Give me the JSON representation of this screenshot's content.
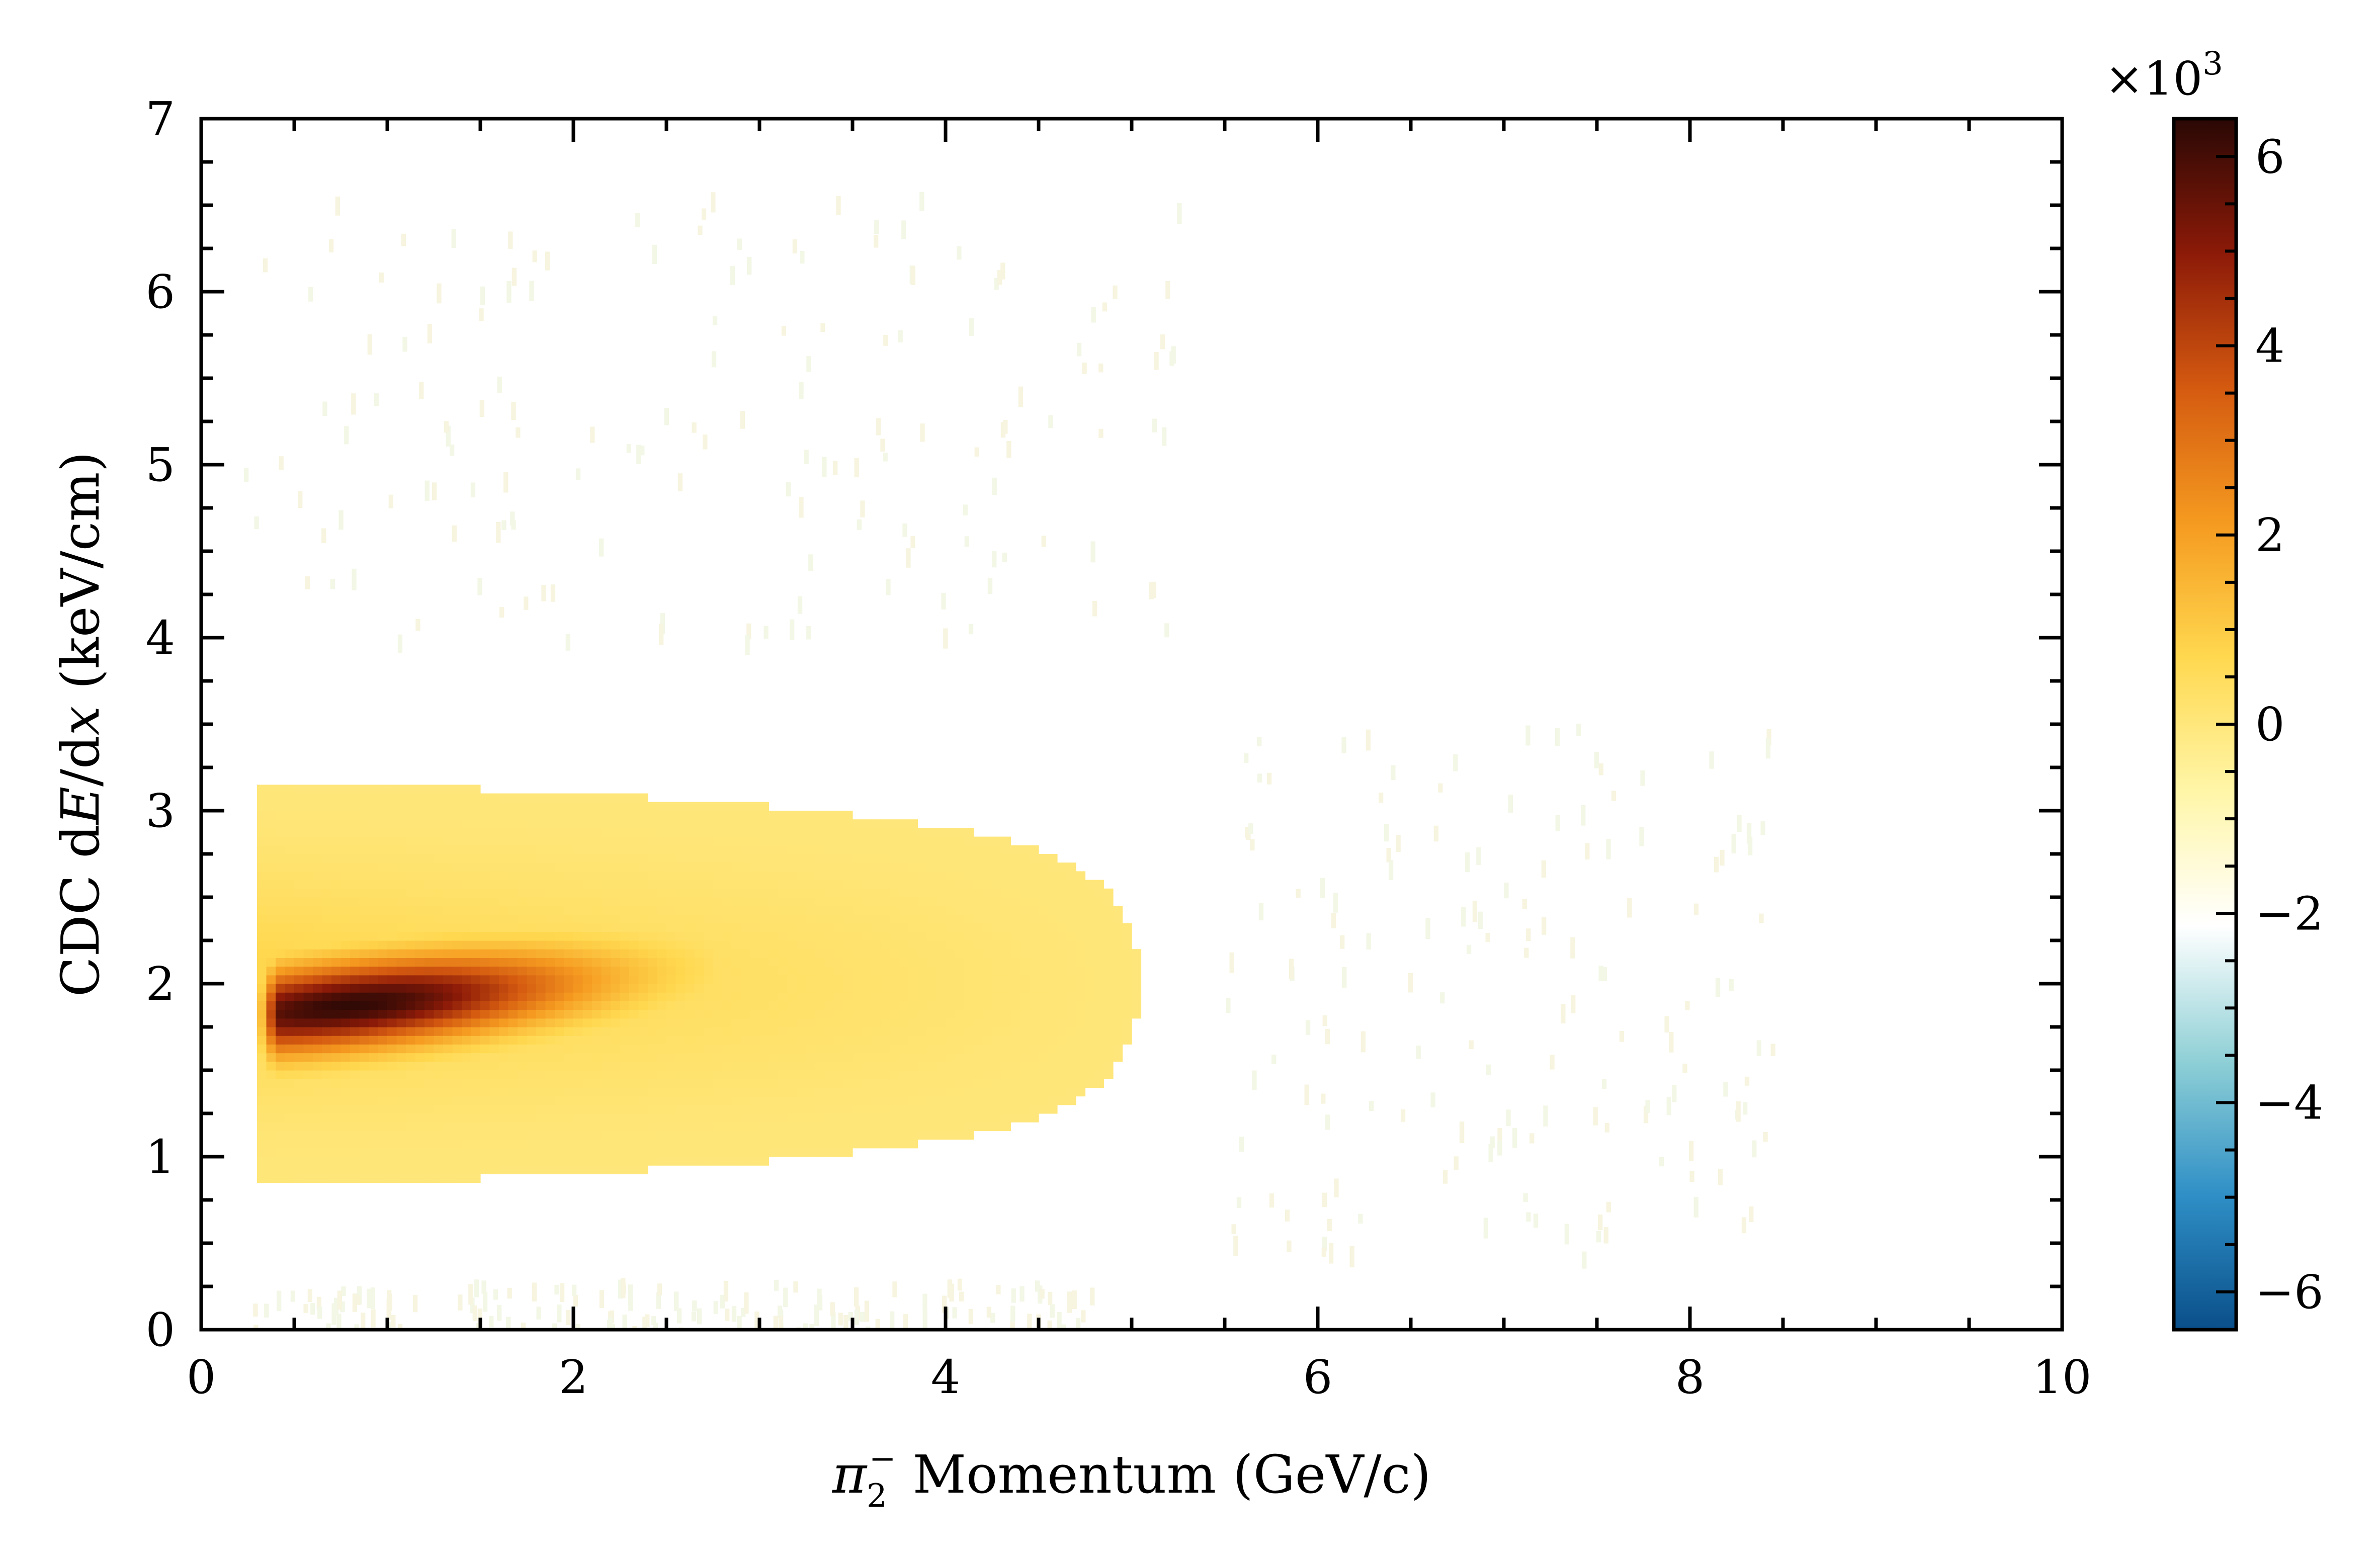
{
  "chart_data": {
    "type": "heatmap",
    "title": "",
    "xlabel": {
      "symbol": "π",
      "subscript": "2",
      "superscript": "−",
      "text": " Momentum (GeV/c)"
    },
    "ylabel": {
      "prefix": "CDC d",
      "var1": "E",
      "mid": "/d",
      "var2": "x",
      "suffix": " (keV/cm)"
    },
    "xlim": [
      0,
      10
    ],
    "ylim": [
      0,
      7
    ],
    "x_ticks": [
      0,
      2,
      4,
      6,
      8,
      10
    ],
    "y_ticks": [
      0,
      1,
      2,
      3,
      4,
      5,
      6,
      7
    ],
    "x_tick_labels": [
      "0",
      "2",
      "4",
      "6",
      "8",
      "10"
    ],
    "y_tick_labels": [
      "0",
      "1",
      "2",
      "3",
      "4",
      "5",
      "6",
      "7"
    ],
    "colorbar": {
      "range": [
        -6400,
        6400
      ],
      "ticks": [
        -6000,
        -4000,
        -2000,
        0,
        2000,
        4000,
        6000
      ],
      "tick_labels": [
        "−6",
        "−4",
        "−2",
        "0",
        "2",
        "4",
        "6"
      ],
      "multiplier_base": "×10",
      "multiplier_exp": "3",
      "colors": [
        "#0a4f8a",
        "#2f8fc6",
        "#8fd0d6",
        "#ffffff",
        "#fff6a8",
        "#ffd84f",
        "#f59a20",
        "#d45a10",
        "#8c1a08",
        "#2a0805"
      ]
    },
    "density_model": {
      "description": "pion dE/dx band: peak near p=0.8 GeV/c, dE/dx≈1.85 keV/cm, rising slowly with momentum",
      "peak_counts": 6300,
      "core": {
        "x0": 0.3,
        "x1": 2.7,
        "y_center_at_x0": 1.82,
        "y_slope": 0.11,
        "y_sigma": 0.17
      },
      "halo": {
        "x_end": 5.2,
        "y_center": 2.0,
        "y_sigma": 0.45,
        "level": 0.12
      },
      "sparse_regions": [
        {
          "x0": 0.2,
          "x1": 5.3,
          "y0": 4.0,
          "y1": 6.6
        },
        {
          "x0": 5.5,
          "x1": 8.5,
          "y0": 0.4,
          "y1": 3.6
        },
        {
          "x0": 0.2,
          "x1": 4.8,
          "y0": 0.0,
          "y1": 0.3
        }
      ]
    }
  }
}
